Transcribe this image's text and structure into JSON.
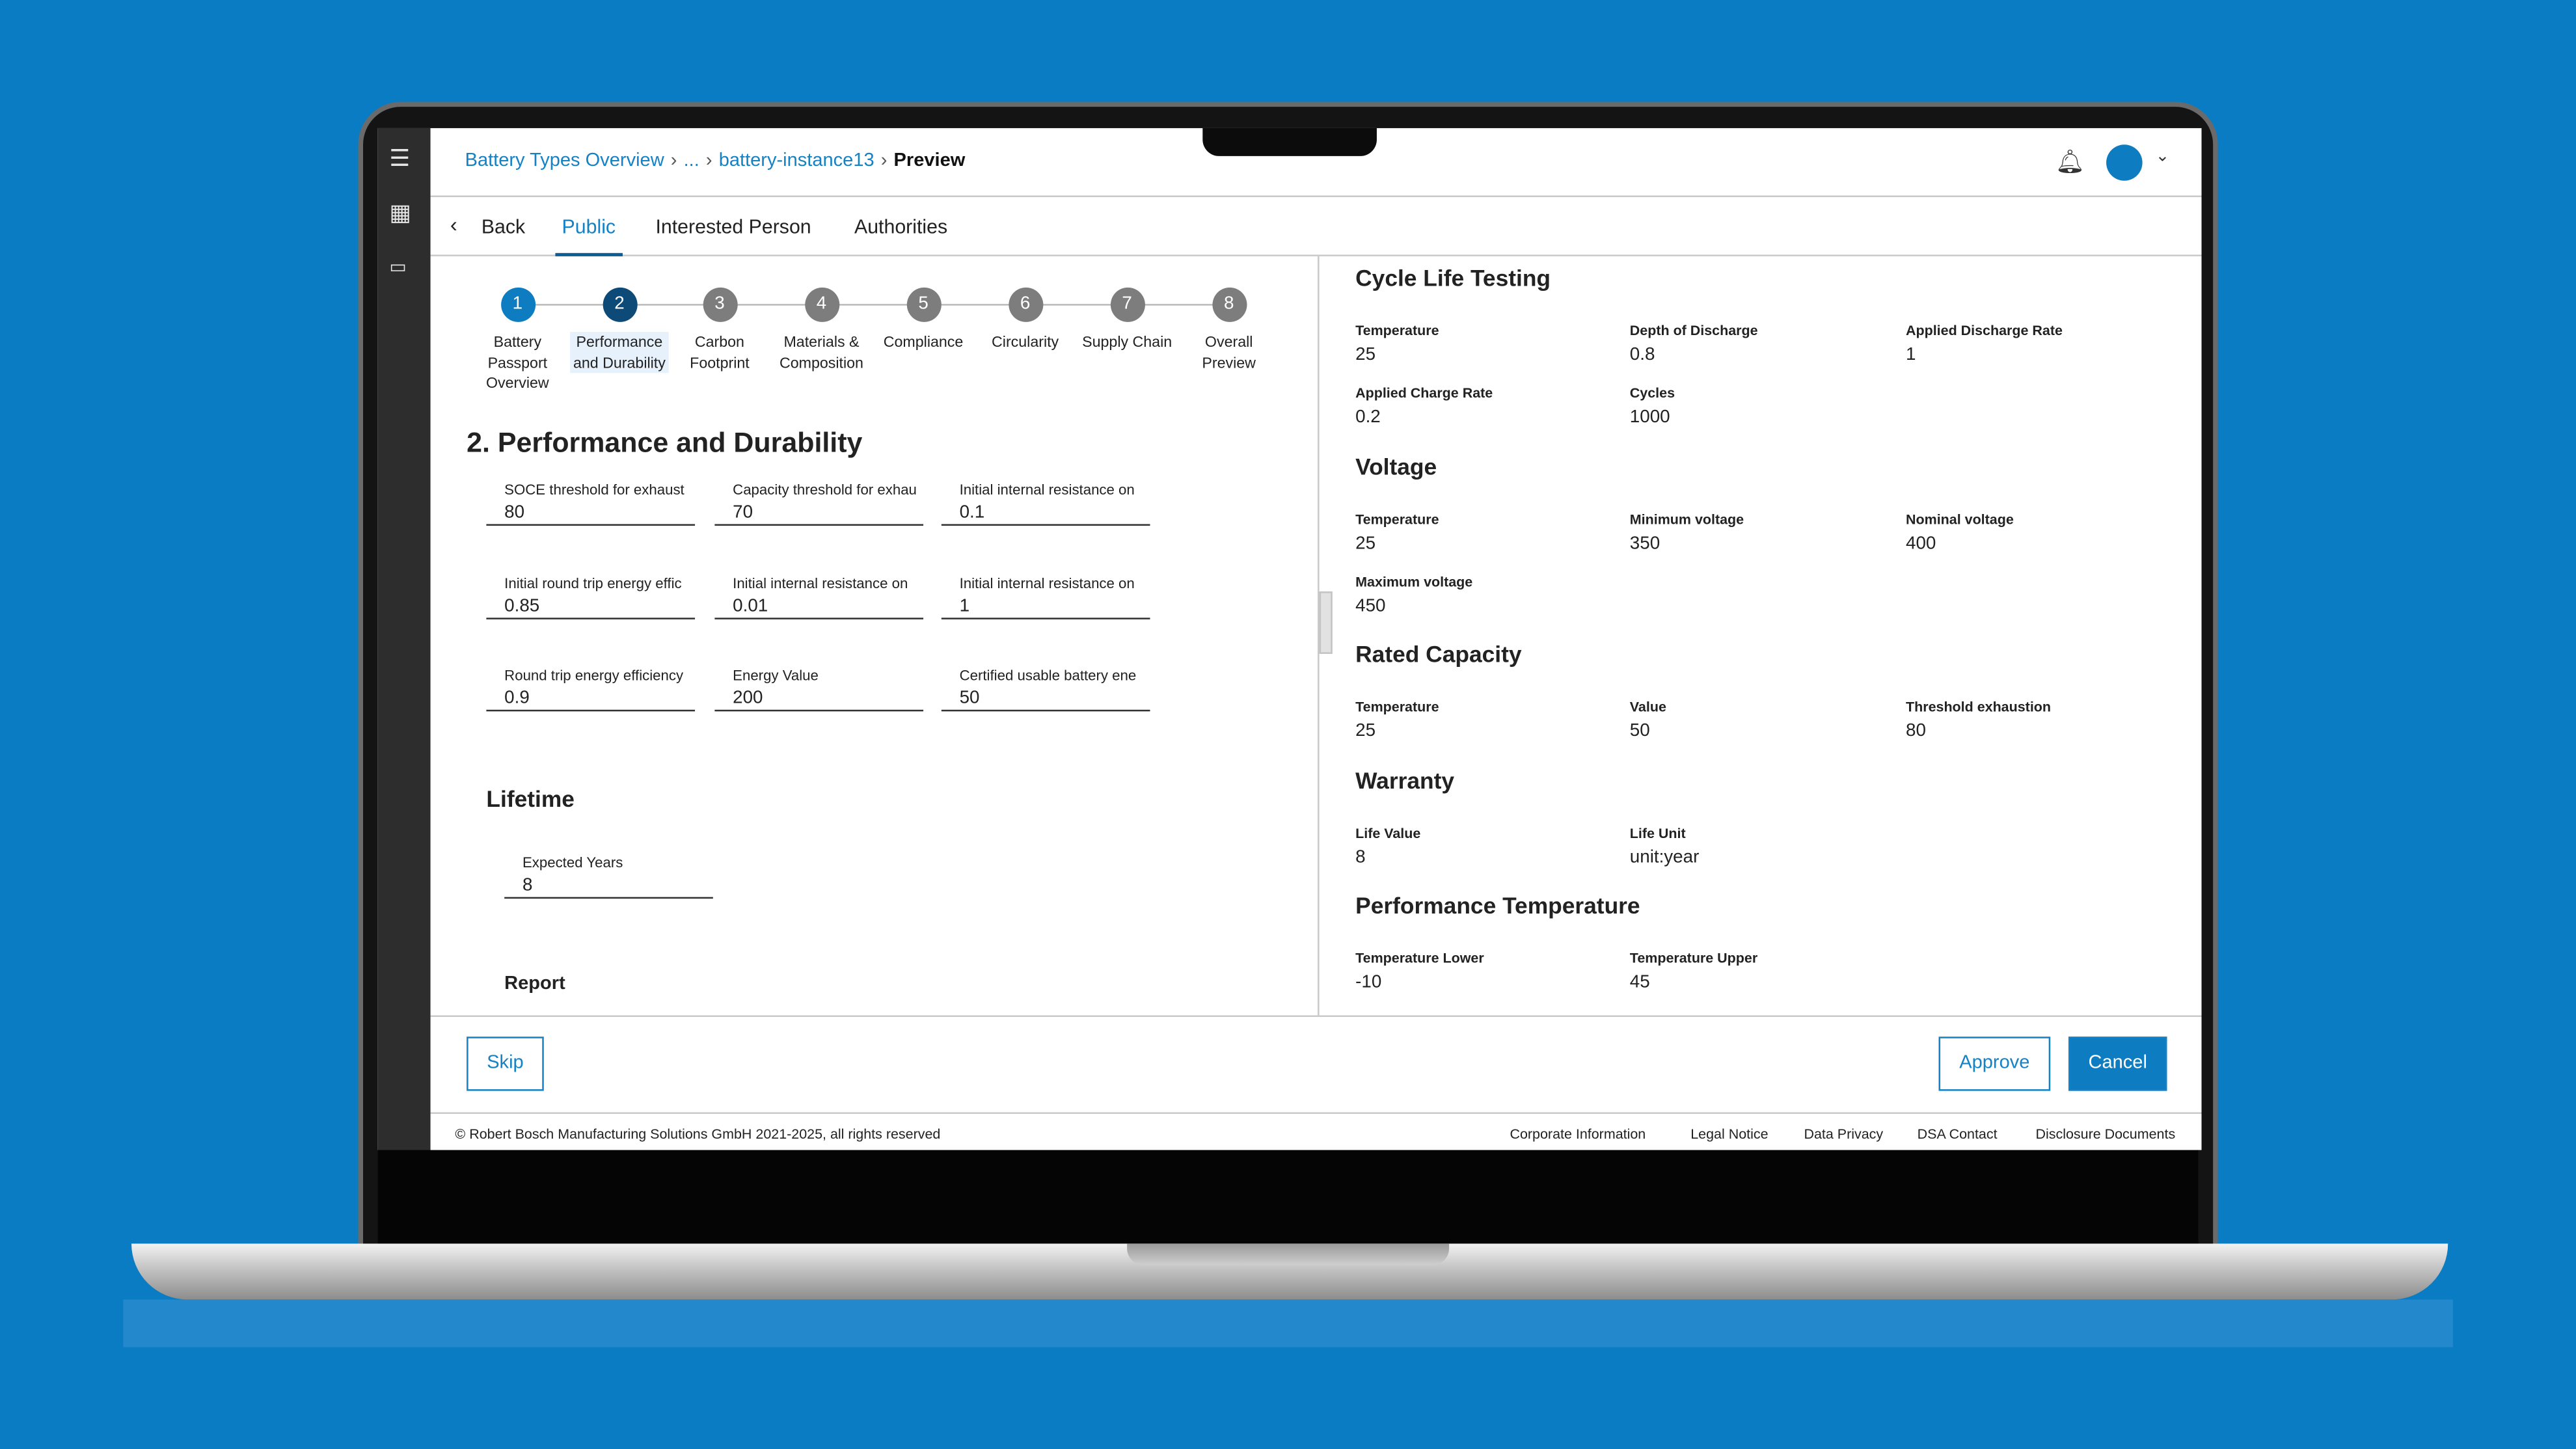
{
  "breadcrumb": {
    "items": [
      "Battery Types Overview",
      "...",
      "battery-instance13"
    ],
    "current": "Preview"
  },
  "tabs": {
    "back": "Back",
    "items": [
      "Public",
      "Interested Person",
      "Authorities"
    ],
    "active": "Public"
  },
  "stepper": [
    {
      "num": "1",
      "label": "Battery Passport Overview",
      "state": "done"
    },
    {
      "num": "2",
      "label": "Performance and Durability",
      "state": "active"
    },
    {
      "num": "3",
      "label": "Carbon Footprint",
      "state": "todo"
    },
    {
      "num": "4",
      "label": "Materials & Composition",
      "state": "todo"
    },
    {
      "num": "5",
      "label": "Compliance",
      "state": "todo"
    },
    {
      "num": "6",
      "label": "Circularity",
      "state": "todo"
    },
    {
      "num": "7",
      "label": "Supply Chain",
      "state": "todo"
    },
    {
      "num": "8",
      "label": "Overall Preview",
      "state": "todo"
    }
  ],
  "left": {
    "title": "2. Performance and Durability",
    "fields": [
      {
        "label": "SOCE threshold for exhaust",
        "value": "80"
      },
      {
        "label": "Capacity threshold for exhau",
        "value": "70"
      },
      {
        "label": "Initial internal resistance on",
        "value": "0.1"
      },
      {
        "label": "Initial round trip energy effic",
        "value": "0.85"
      },
      {
        "label": "Initial internal resistance on",
        "value": "0.01"
      },
      {
        "label": "Initial internal resistance on",
        "value": "1"
      },
      {
        "label": "Round trip energy efficiency",
        "value": "0.9"
      },
      {
        "label": "Energy Value",
        "value": "200"
      },
      {
        "label": "Certified usable battery ene",
        "value": "50"
      }
    ],
    "lifetime": {
      "title": "Lifetime",
      "label": "Expected Years",
      "value": "8"
    },
    "report": "Report"
  },
  "right": {
    "sections": [
      {
        "title": "Cycle Life Testing",
        "fields": [
          {
            "label": "Temperature",
            "value": "25"
          },
          {
            "label": "Depth of Discharge",
            "value": "0.8"
          },
          {
            "label": "Applied Discharge Rate",
            "value": "1"
          },
          {
            "label": "Applied Charge Rate",
            "value": "0.2"
          },
          {
            "label": "Cycles",
            "value": "1000"
          }
        ]
      },
      {
        "title": "Voltage",
        "fields": [
          {
            "label": "Temperature",
            "value": "25"
          },
          {
            "label": "Minimum voltage",
            "value": "350"
          },
          {
            "label": "Nominal voltage",
            "value": "400"
          },
          {
            "label": "Maximum voltage",
            "value": "450"
          }
        ]
      },
      {
        "title": "Rated Capacity",
        "fields": [
          {
            "label": "Temperature",
            "value": "25"
          },
          {
            "label": "Value",
            "value": "50"
          },
          {
            "label": "Threshold exhaustion",
            "value": "80"
          }
        ]
      },
      {
        "title": "Warranty",
        "fields": [
          {
            "label": "Life Value",
            "value": "8"
          },
          {
            "label": "Life Unit",
            "value": "unit:year"
          }
        ]
      },
      {
        "title": "Performance Temperature",
        "fields": [
          {
            "label": "Temperature Lower",
            "value": "-10"
          },
          {
            "label": "Temperature Upper",
            "value": "45"
          }
        ]
      }
    ]
  },
  "actions": {
    "skip": "Skip",
    "approve": "Approve",
    "cancel": "Cancel"
  },
  "footer": {
    "copyright": "© Robert Bosch Manufacturing Solutions GmbH 2021-2025, all rights reserved",
    "links": [
      "Corporate Information",
      "Legal Notice",
      "Data Privacy",
      "DSA Contact",
      "Disclosure Documents"
    ]
  },
  "colors": {
    "accent": "#1582c5",
    "active_step": "#0d4a78",
    "background": "#0a7cc3"
  }
}
